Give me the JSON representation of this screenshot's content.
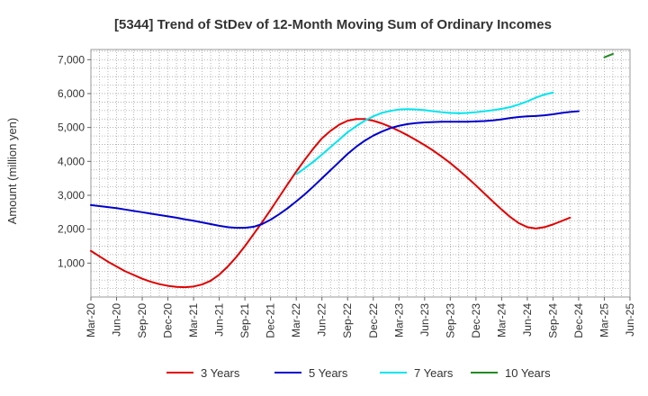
{
  "chart_data": {
    "type": "line",
    "title": "[5344]  Trend of StDev of 12-Month Moving Sum of Ordinary Incomes",
    "xlabel": "",
    "ylabel": "Amount (million yen)",
    "ylim": [
      0,
      7300
    ],
    "y_ticks": [
      1000,
      2000,
      3000,
      4000,
      5000,
      6000,
      7000
    ],
    "y_tick_labels": [
      "1,000",
      "2,000",
      "3,000",
      "4,000",
      "5,000",
      "6,000",
      "7,000"
    ],
    "x_tick_labels": [
      "Mar-20",
      "Jun-20",
      "Sep-20",
      "Dec-20",
      "Mar-21",
      "Jun-21",
      "Sep-21",
      "Dec-21",
      "Mar-22",
      "Jun-22",
      "Sep-22",
      "Dec-22",
      "Mar-23",
      "Jun-23",
      "Sep-23",
      "Dec-23",
      "Mar-24",
      "Jun-24",
      "Sep-24",
      "Dec-24",
      "Mar-25",
      "Jun-25"
    ],
    "grid": true,
    "legend_position": "bottom",
    "series": [
      {
        "name": "3 Years",
        "color": "#e00000",
        "values": [
          1360,
          1200,
          1040,
          900,
          760,
          650,
          540,
          450,
          380,
          330,
          300,
          290,
          310,
          370,
          480,
          660,
          900,
          1180,
          1500,
          1850,
          2200,
          2570,
          2950,
          3330,
          3700,
          4050,
          4380,
          4680,
          4900,
          5080,
          5200,
          5250,
          5250,
          5200,
          5120,
          5020,
          4900,
          4770,
          4630,
          4480,
          4320,
          4140,
          3950,
          3740,
          3520,
          3290,
          3050,
          2810,
          2580,
          2360,
          2180,
          2060,
          2020,
          2060,
          2140,
          2240,
          2340
        ]
      },
      {
        "name": "5 Years",
        "color": "#0000cc",
        "values": [
          2710,
          2680,
          2650,
          2620,
          2580,
          2540,
          2500,
          2460,
          2420,
          2380,
          2340,
          2290,
          2250,
          2200,
          2150,
          2100,
          2060,
          2040,
          2040,
          2070,
          2150,
          2280,
          2440,
          2620,
          2820,
          3030,
          3260,
          3500,
          3740,
          3980,
          4220,
          4430,
          4610,
          4760,
          4880,
          4980,
          5050,
          5100,
          5130,
          5150,
          5160,
          5170,
          5170,
          5170,
          5170,
          5180,
          5190,
          5210,
          5240,
          5280,
          5310,
          5330,
          5340,
          5360,
          5390,
          5430,
          5460,
          5480
        ]
      },
      {
        "name": "7 Years",
        "color": "#00e5ee",
        "start_index": 24,
        "values": [
          3620,
          3800,
          3990,
          4200,
          4420,
          4640,
          4860,
          5040,
          5200,
          5330,
          5430,
          5490,
          5530,
          5540,
          5530,
          5510,
          5480,
          5450,
          5430,
          5420,
          5430,
          5450,
          5480,
          5510,
          5550,
          5600,
          5680,
          5770,
          5880,
          5970,
          6030
        ]
      },
      {
        "name": "10 Years",
        "color": "#228b22",
        "start_index": 60,
        "values": [
          7070,
          7170
        ]
      }
    ]
  }
}
